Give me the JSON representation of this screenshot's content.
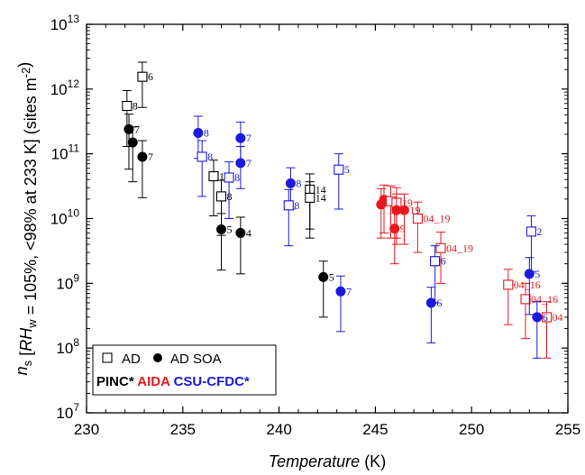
{
  "chart_data": {
    "type": "scatter",
    "xlabel": "Temperature (K)",
    "ylabel": "n_s [RH_w = 105%, <98% at 233 K] (sites m^-2)",
    "xlim": [
      230,
      255
    ],
    "ylim_log10": [
      7,
      13
    ],
    "y_scale": "log",
    "x_ticks": [
      230,
      235,
      240,
      245,
      250,
      255
    ],
    "y_tick_exponents": [
      7,
      8,
      9,
      10,
      11,
      12,
      13
    ],
    "legend": {
      "placement": "bottom-left",
      "marker_entries": [
        {
          "marker": "open-square",
          "label": "AD"
        },
        {
          "marker": "filled-circle",
          "label": "AD SOA"
        }
      ],
      "instrument_entries": [
        {
          "label": "PINC*",
          "color": "#000000"
        },
        {
          "label": "AIDA",
          "color": "#e8181f"
        },
        {
          "label": "CSU-CFDC*",
          "color": "#1a1adf"
        }
      ]
    },
    "series": [
      {
        "name": "PINC*",
        "color": "#000000",
        "points": [
          {
            "t": 232.1,
            "ns": 550000000000.0,
            "m": "sq",
            "lab": "8",
            "lo": 130000000000.0,
            "hi": 950000000000.0
          },
          {
            "t": 232.9,
            "ns": 1550000000000.0,
            "m": "sq",
            "lab": "6",
            "lo": 520000000000.0,
            "hi": 2600000000000.0
          },
          {
            "t": 232.2,
            "ns": 240000000000.0,
            "m": "ci",
            "lab": "7",
            "lo": 58000000000.0,
            "hi": 410000000000.0
          },
          {
            "t": 232.4,
            "ns": 150000000000.0,
            "m": "ci",
            "lab": "",
            "lo": 37000000000.0,
            "hi": 260000000000.0
          },
          {
            "t": 232.9,
            "ns": 90000000000.0,
            "m": "ci",
            "lab": "7",
            "lo": 21000000000.0,
            "hi": 160000000000.0
          },
          {
            "t": 236.6,
            "ns": 45000000000.0,
            "m": "sq",
            "lab": "1",
            "lo": 11000000000.0,
            "hi": 80000000000.0
          },
          {
            "t": 237.0,
            "ns": 22000000000.0,
            "m": "sq",
            "lab": "8",
            "lo": 5500000000.0,
            "hi": 39000000000.0
          },
          {
            "t": 241.6,
            "ns": 28000000000.0,
            "m": "sq",
            "lab": "14",
            "lo": 6900000000.0,
            "hi": 49000000000.0
          },
          {
            "t": 241.6,
            "ns": 21000000000.0,
            "m": "sq",
            "lab": "14",
            "lo": 5000000000.0,
            "hi": 37000000000.0
          },
          {
            "t": 237.0,
            "ns": 6800000000.0,
            "m": "ci",
            "lab": "5",
            "lo": 1600000000.0,
            "hi": 12000000000.0
          },
          {
            "t": 238.0,
            "ns": 6000000000.0,
            "m": "ci",
            "lab": "4",
            "lo": 1400000000.0,
            "hi": 10500000000.0
          },
          {
            "t": 242.3,
            "ns": 1250000000.0,
            "m": "ci",
            "lab": "5",
            "lo": 300000000.0,
            "hi": 2200000000.0
          }
        ]
      },
      {
        "name": "AIDA",
        "color": "#e8181f",
        "points": [
          {
            "t": 245.3,
            "ns": 16500000000.0,
            "m": "ci",
            "lab": "",
            "lo": 5000000000.0,
            "hi": 29000000000.0
          },
          {
            "t": 245.45,
            "ns": 19500000000.0,
            "m": "ci",
            "lab": "",
            "lo": 6000000000.0,
            "hi": 33000000000.0
          },
          {
            "t": 245.8,
            "ns": 18500000000.0,
            "m": "sq",
            "lab": "",
            "lo": 5000000000.0,
            "hi": 32000000000.0
          },
          {
            "t": 246.1,
            "ns": 17500000000.0,
            "m": "sq",
            "lab": "19",
            "lo": 5000000000.0,
            "hi": 30000000000.0
          },
          {
            "t": 246.1,
            "ns": 13500000000.0,
            "m": "ci",
            "lab": "",
            "lo": 4000000000.0,
            "hi": 24000000000.0
          },
          {
            "t": 246.5,
            "ns": 13500000000.0,
            "m": "ci",
            "lab": "19",
            "lo": 4000000000.0,
            "hi": 24000000000.0
          },
          {
            "t": 246.0,
            "ns": 7000000000.0,
            "m": "ci",
            "lab": "9",
            "lo": 2000000000.0,
            "hi": 12000000000.0
          },
          {
            "t": 247.2,
            "ns": 10000000000.0,
            "m": "sq",
            "lab": "04_19",
            "lo": 3000000000.0,
            "hi": 18000000000.0
          },
          {
            "t": 248.4,
            "ns": 3500000000.0,
            "m": "sq",
            "lab": "04_19",
            "lo": 1000000000.0,
            "hi": 6200000000.0
          },
          {
            "t": 251.9,
            "ns": 950000000.0,
            "m": "sq",
            "lab": "04_16",
            "lo": 230000000.0,
            "hi": 1650000000.0
          },
          {
            "t": 252.8,
            "ns": 570000000.0,
            "m": "sq",
            "lab": "04_16",
            "lo": 140000000.0,
            "hi": 1000000000.0
          },
          {
            "t": 253.9,
            "ns": 300000000.0,
            "m": "sq",
            "lab": "04",
            "lo": 70000000.0,
            "hi": 520000000.0
          }
        ]
      },
      {
        "name": "CSU-CFDC*",
        "color": "#1a1adf",
        "points": [
          {
            "t": 235.8,
            "ns": 210000000000.0,
            "m": "ci",
            "lab": "8",
            "lo": 85000000000.0,
            "hi": 380000000000.0
          },
          {
            "t": 236.0,
            "ns": 90000000000.0,
            "m": "sq",
            "lab": "8",
            "lo": 22000000000.0,
            "hi": 160000000000.0
          },
          {
            "t": 237.4,
            "ns": 43000000000.0,
            "m": "sq",
            "lab": "8",
            "lo": 10000000000.0,
            "hi": 75000000000.0
          },
          {
            "t": 238.0,
            "ns": 175000000000.0,
            "m": "ci",
            "lab": "7",
            "lo": 70000000000.0,
            "hi": 310000000000.0
          },
          {
            "t": 238.0,
            "ns": 72000000000.0,
            "m": "ci",
            "lab": "7",
            "lo": 29000000000.0,
            "hi": 130000000000.0
          },
          {
            "t": 240.6,
            "ns": 35000000000.0,
            "m": "ci",
            "lab": "8",
            "lo": 14000000000.0,
            "hi": 61000000000.0
          },
          {
            "t": 240.5,
            "ns": 16000000000.0,
            "m": "sq",
            "lab": "8",
            "lo": 3800000000.0,
            "hi": 28000000000.0
          },
          {
            "t": 243.1,
            "ns": 57000000000.0,
            "m": "sq",
            "lab": "5",
            "lo": 14000000000.0,
            "hi": 100000000000.0
          },
          {
            "t": 243.2,
            "ns": 750000000.0,
            "m": "ci",
            "lab": "7",
            "lo": 180000000.0,
            "hi": 1300000000.0
          },
          {
            "t": 248.1,
            "ns": 2200000000.0,
            "m": "sq",
            "lab": "6",
            "lo": 500000000.0,
            "hi": 3800000000.0
          },
          {
            "t": 247.9,
            "ns": 500000000.0,
            "m": "ci",
            "lab": "6",
            "lo": 120000000.0,
            "hi": 870000000.0
          },
          {
            "t": 253.1,
            "ns": 6300000000.0,
            "m": "sq",
            "lab": "2",
            "lo": 1500000000.0,
            "hi": 11000000000.0
          },
          {
            "t": 253.0,
            "ns": 1400000000.0,
            "m": "ci",
            "lab": "5",
            "lo": 330000000.0,
            "hi": 2500000000.0
          },
          {
            "t": 253.4,
            "ns": 300000000.0,
            "m": "ci",
            "lab": "6",
            "lo": 70000000.0,
            "hi": 520000000.0
          }
        ]
      }
    ]
  }
}
